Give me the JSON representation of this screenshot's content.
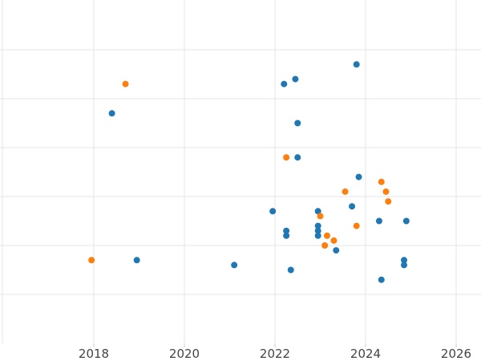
{
  "chart_data": {
    "type": "scatter",
    "title": "",
    "xlabel": "",
    "ylabel": "",
    "xlim": [
      2016.5,
      2026.5
    ],
    "ylim": [
      0,
      6
    ],
    "x_ticks": [
      2018,
      2020,
      2022,
      2024,
      2026
    ],
    "x_tick_labels": [
      "2018",
      "2020",
      "2022",
      "2024",
      "2026"
    ],
    "y_gridlines": [
      1,
      2,
      3,
      4,
      5,
      6
    ],
    "grid": true,
    "legend": "none",
    "series": [
      {
        "color": "#1f77b4",
        "points": [
          [
            2023.8,
            5.7
          ],
          [
            2022.2,
            5.3
          ],
          [
            2022.45,
            5.4
          ],
          [
            2018.4,
            4.7
          ],
          [
            2022.5,
            4.5
          ],
          [
            2022.5,
            3.8
          ],
          [
            2023.85,
            3.4
          ],
          [
            2023.7,
            2.8
          ],
          [
            2021.95,
            2.7
          ],
          [
            2022.95,
            2.7
          ],
          [
            2024.3,
            2.5
          ],
          [
            2024.9,
            2.5
          ],
          [
            2022.25,
            2.3
          ],
          [
            2022.25,
            2.2
          ],
          [
            2022.95,
            2.4
          ],
          [
            2022.95,
            2.3
          ],
          [
            2022.95,
            2.2
          ],
          [
            2023.35,
            1.9
          ],
          [
            2018.95,
            1.7
          ],
          [
            2021.1,
            1.6
          ],
          [
            2022.35,
            1.5
          ],
          [
            2024.85,
            1.7
          ],
          [
            2024.85,
            1.6
          ],
          [
            2024.35,
            1.3
          ]
        ]
      },
      {
        "color": "#ff7f0e",
        "points": [
          [
            2018.7,
            5.3
          ],
          [
            2022.25,
            3.8
          ],
          [
            2024.35,
            3.3
          ],
          [
            2024.45,
            3.1
          ],
          [
            2024.5,
            2.9
          ],
          [
            2023.55,
            3.1
          ],
          [
            2023.0,
            2.6
          ],
          [
            2023.8,
            2.4
          ],
          [
            2023.15,
            2.2
          ],
          [
            2023.3,
            2.1
          ],
          [
            2023.1,
            2.0
          ],
          [
            2017.95,
            1.7
          ]
        ]
      }
    ]
  }
}
